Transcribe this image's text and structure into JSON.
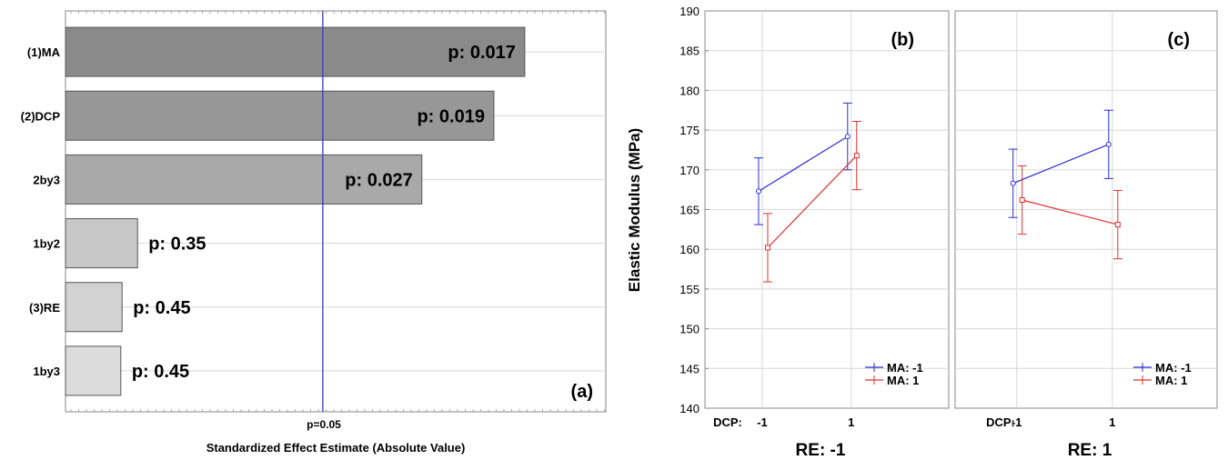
{
  "chart_data": [
    {
      "panel_label": "(a)",
      "type": "bar",
      "orientation": "horizontal",
      "xlabel": "Standardized Effect Estimate (Absolute Value)",
      "reference_label": "p=0.05",
      "reference_value": 2.0,
      "xlim": [
        0,
        4.2
      ],
      "categories": [
        "(1)MA",
        "(2)DCP",
        "2by3",
        "1by2",
        "(3)RE",
        "1by3"
      ],
      "values": [
        3.57,
        3.33,
        2.77,
        0.56,
        0.44,
        0.43
      ],
      "bar_labels": [
        "p: 0.017",
        "p: 0.019",
        "p: 0.027",
        "p: 0.35",
        "p: 0.45",
        "p: 0.45"
      ],
      "bar_colors": [
        "#8a8a8a",
        "#979797",
        "#a9a9a9",
        "#c8c8c8",
        "#d2d2d2",
        "#dcdcdc"
      ]
    },
    {
      "panel_label": "(b)",
      "type": "line",
      "ylabel": "Elastic Modulus (MPa)",
      "ylim": [
        140,
        190
      ],
      "yticks": [
        "140",
        "145",
        "150",
        "155",
        "160",
        "165",
        "170",
        "175",
        "180",
        "185",
        "190"
      ],
      "x_prefix": "DCP:",
      "x": [
        "-1",
        "1"
      ],
      "bottom_label": "RE: -1",
      "series": [
        {
          "name": "MA: -1",
          "color": "#2b2bd6",
          "values": [
            167.3,
            174.2
          ],
          "err": [
            4.2,
            4.2
          ]
        },
        {
          "name": "MA: 1",
          "color": "#e03030",
          "values": [
            160.2,
            171.8
          ],
          "err": [
            4.3,
            4.3
          ]
        }
      ]
    },
    {
      "panel_label": "(c)",
      "type": "line",
      "ylim": [
        140,
        190
      ],
      "x_prefix": "DCP:",
      "x": [
        "-1",
        "1"
      ],
      "bottom_label": "RE: 1",
      "series": [
        {
          "name": "MA: -1",
          "color": "#2b2bd6",
          "values": [
            168.3,
            173.2
          ],
          "err": [
            4.3,
            4.3
          ]
        },
        {
          "name": "MA: 1",
          "color": "#e03030",
          "values": [
            166.2,
            163.1
          ],
          "err": [
            4.3,
            4.3
          ]
        }
      ]
    }
  ]
}
